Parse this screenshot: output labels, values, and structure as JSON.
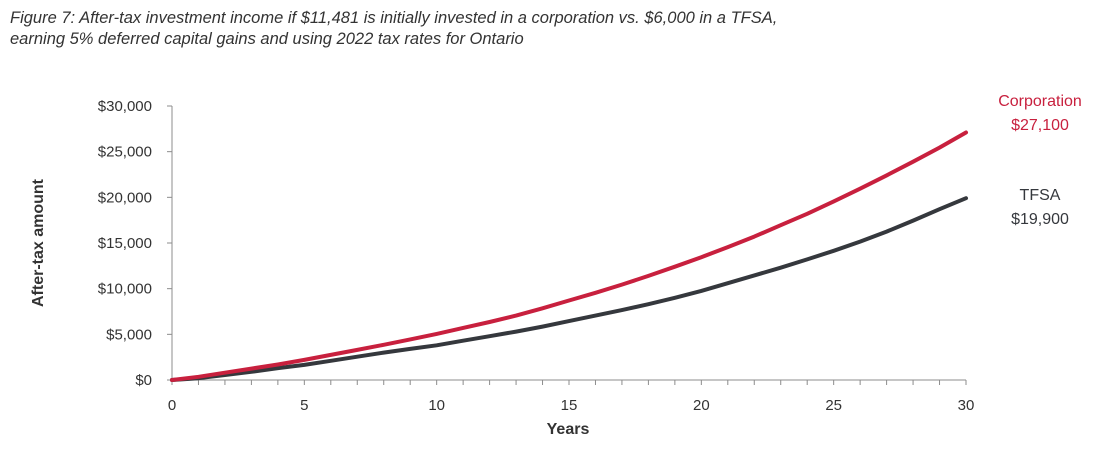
{
  "title_line1": "Figure 7: After-tax investment income if $11,481 is initially invested in a corporation vs. $6,000 in a TFSA,",
  "title_line2": "earning 5% deferred capital gains and using 2022 tax rates for Ontario",
  "chart_data": {
    "type": "line",
    "xlabel": "Years",
    "ylabel": "After-tax amount",
    "xlim": [
      0,
      30
    ],
    "ylim": [
      0,
      30000
    ],
    "x_ticks": [
      0,
      5,
      10,
      15,
      20,
      25,
      30
    ],
    "y_ticks": [
      {
        "value": 0,
        "label": "$0"
      },
      {
        "value": 5000,
        "label": "$5,000"
      },
      {
        "value": 10000,
        "label": "$10,000"
      },
      {
        "value": 15000,
        "label": "$15,000"
      },
      {
        "value": 20000,
        "label": "$20,000"
      },
      {
        "value": 25000,
        "label": "$25,000"
      },
      {
        "value": 30000,
        "label": "$30,000"
      }
    ],
    "grid": false,
    "x": [
      0,
      1,
      2,
      3,
      4,
      5,
      6,
      7,
      8,
      9,
      10,
      11,
      12,
      13,
      14,
      15,
      16,
      17,
      18,
      19,
      20,
      21,
      22,
      23,
      24,
      25,
      26,
      27,
      28,
      29,
      30
    ],
    "series": [
      {
        "name": "Corporation",
        "end_label_name": "Corporation",
        "end_label_value": "$27,100",
        "color": "#c8203e",
        "values": [
          0,
          350,
          800,
          1250,
          1700,
          2200,
          2750,
          3300,
          3850,
          4450,
          5050,
          5700,
          6350,
          7050,
          7850,
          8700,
          9550,
          10450,
          11400,
          12400,
          13450,
          14550,
          15700,
          16950,
          18200,
          19550,
          20950,
          22400,
          23900,
          25450,
          27100
        ]
      },
      {
        "name": "TFSA",
        "end_label_name": "TFSA",
        "end_label_value": "$19,900",
        "color": "#35383d",
        "values": [
          0,
          200,
          550,
          900,
          1300,
          1650,
          2100,
          2550,
          3000,
          3400,
          3800,
          4300,
          4800,
          5300,
          5850,
          6450,
          7050,
          7650,
          8300,
          9000,
          9750,
          10600,
          11450,
          12300,
          13200,
          14150,
          15150,
          16250,
          17450,
          18700,
          19900
        ]
      }
    ]
  }
}
